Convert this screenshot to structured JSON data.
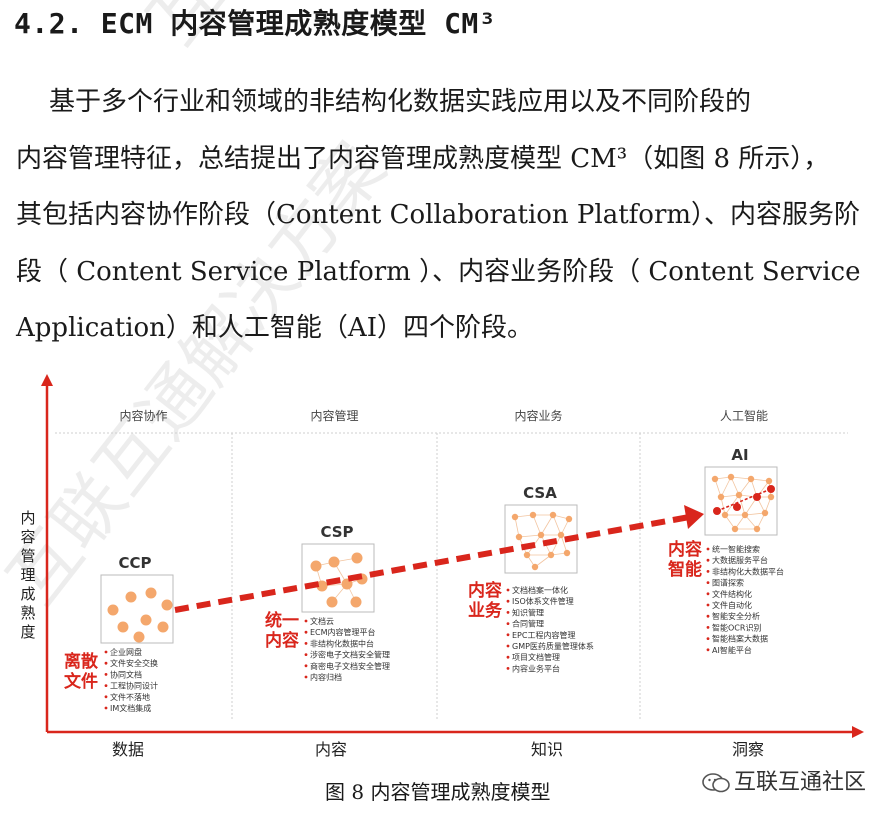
{
  "heading": "4.2.  ECM 内容管理成熟度模型 CM³",
  "paragraph": [
    "    基于多个行业和领域的非结构化数据实践应用以及不同阶段的",
    "内容管理特征，总结提出了内容管理成熟度模型 CM³（如图 8 所示），",
    "其包括内容协作阶段（Content Collaboration Platform）、内容服务阶",
    "段（ Content Service Platform ）、内容业务阶段（ Content Service",
    "Application）和人工智能（AI）四个阶段。"
  ],
  "watermark": "互联互通解决方案",
  "figure": {
    "y_axis_label": [
      "内",
      "容",
      "管",
      "理",
      "成",
      "熟",
      "度"
    ],
    "stages": [
      {
        "header": "内容协作",
        "code": "CCP",
        "title": [
          "离散",
          "文件"
        ],
        "items": [
          "企业网盘",
          "文件安全交换",
          "协同文档",
          "工程协同设计",
          "文件不落地",
          "IM文档集成"
        ],
        "x_label": "数据"
      },
      {
        "header": "内容管理",
        "code": "CSP",
        "title": [
          "统一",
          "内容"
        ],
        "items": [
          "文档云",
          "ECM内容管理平台",
          "非结构化数据中台",
          "涉密电子文档安全管理",
          "商密电子文档安全管理",
          "内容归档"
        ],
        "x_label": "内容"
      },
      {
        "header": "内容业务",
        "code": "CSA",
        "title": [
          "内容",
          "业务"
        ],
        "items": [
          "文档档案一体化",
          "ISO体系文件管理",
          "知识管理",
          "合同管理",
          "EPC工程内容管理",
          "GMP医药质量管理体系",
          "项目文档管理",
          "内容业务平台"
        ],
        "x_label": "知识"
      },
      {
        "header": "人工智能",
        "code": "AI",
        "title": [
          "内容",
          "智能"
        ],
        "items": [
          "统一智能搜索",
          "大数据服务平台",
          "非结构化大数据平台",
          "图谱探索",
          "文件结构化",
          "文件自动化",
          "智能安全分析",
          "智能OCR识别",
          "智能档案大数据",
          "AI智能平台"
        ],
        "x_label": "洞察"
      }
    ],
    "colors": {
      "accent": "#d9261c",
      "node": "#f4a76c",
      "frame": "#cfcfcf"
    }
  },
  "caption": "图 8  内容管理成熟度模型",
  "brand": "互联互通社区"
}
